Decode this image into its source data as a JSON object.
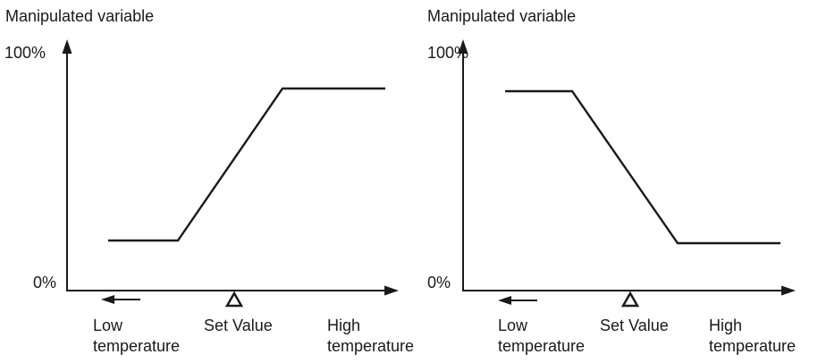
{
  "diagrams": [
    {
      "axis_title": "Manipulated variable",
      "y_top_label": "100%",
      "y_zero_label": "0%",
      "low_label_line1": "Low",
      "low_label_line2": "temperature",
      "set_value_label": "Set Value",
      "high_label_line1": "High",
      "high_label_line2": "temperature",
      "action": "rising"
    },
    {
      "axis_title": "Manipulated variable",
      "y_top_label": "100%",
      "y_zero_label": "0%",
      "low_label_line1": "Low",
      "low_label_line2": "temperature",
      "set_value_label": "Set Value",
      "high_label_line1": "High",
      "high_label_line2": "temperature",
      "action": "falling"
    }
  ],
  "icons": {
    "left_arrow": "left-arrow-icon",
    "set_point_marker": "triangle-outline-icon"
  }
}
